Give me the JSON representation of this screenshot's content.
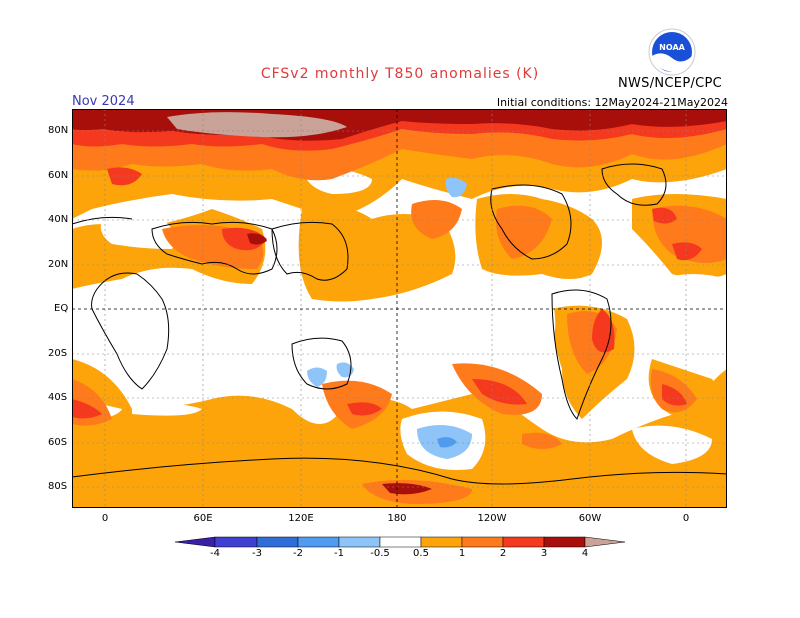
{
  "header": {
    "title": "CFSv2 monthly T850 anomalies (K)",
    "month": "Nov 2024",
    "initial_conditions": "Initial conditions: 12May2024-21May2024",
    "agency": "NWS/NCEP/CPC",
    "logo_text": "NOAA"
  },
  "map": {
    "lat_labels": [
      "80N",
      "60N",
      "40N",
      "20N",
      "EQ",
      "20S",
      "40S",
      "60S",
      "80S"
    ],
    "lon_labels": [
      "0",
      "60E",
      "120E",
      "180",
      "120W",
      "60W",
      "0"
    ],
    "colors": {
      "neg4": "#3a1fa8",
      "neg3": "#3f3fd1",
      "neg2": "#2f6ed8",
      "neg1": "#4e9bf0",
      "neg05": "#8ec4f7",
      "zero": "#ffffff",
      "pos05": "#fca40a",
      "pos1": "#ff7a1a",
      "pos2": "#f5391e",
      "pos3": "#a80f0a",
      "pos4": "#c9a398"
    }
  },
  "colorbar": {
    "labels": [
      "-4",
      "-3",
      "-2",
      "-1",
      "-0.5",
      "0.5",
      "1",
      "2",
      "3",
      "4"
    ]
  }
}
